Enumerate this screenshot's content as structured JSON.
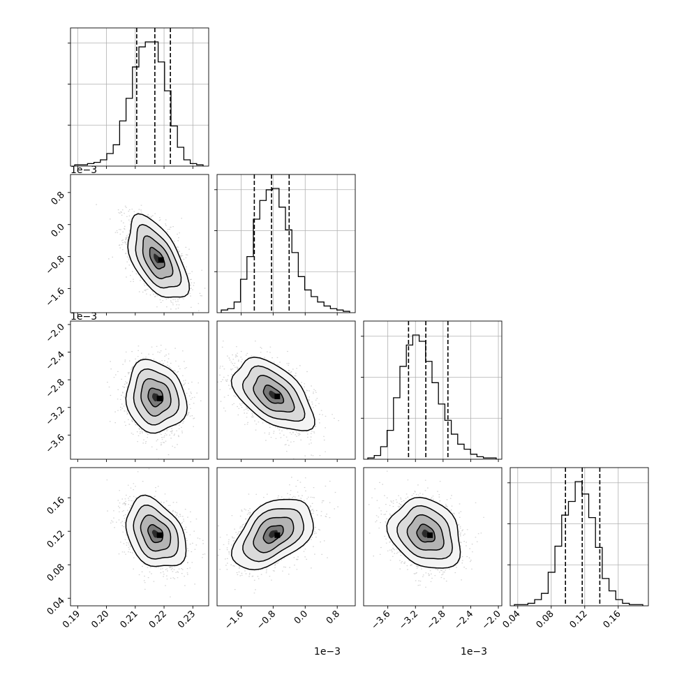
{
  "chart_data": {
    "type": "corner",
    "parameters": [
      {
        "range": [
          0.1875,
          0.2355
        ],
        "ticks": [
          0.19,
          0.2,
          0.21,
          0.22,
          0.23
        ],
        "tick_labels": [
          "0.19",
          "0.20",
          "0.21",
          "0.22",
          "0.23"
        ],
        "offset_label": "",
        "quantiles": [
          0.2105,
          0.2168,
          0.2222
        ],
        "hist_counts": [
          1,
          1,
          2,
          3,
          5,
          10,
          17,
          36,
          54,
          79,
          95,
          99,
          99,
          83,
          60,
          32,
          15,
          5,
          2,
          1
        ]
      },
      {
        "range": [
          -2.2,
          1.25
        ],
        "ticks": [
          -1.6,
          -0.8,
          0.0,
          0.8
        ],
        "tick_labels": [
          "−1.6",
          "−0.8",
          "0.0",
          "0.8"
        ],
        "offset_label": "1e−3",
        "quantiles": [
          -1.27,
          -0.84,
          -0.4
        ],
        "hist_counts": [
          2,
          3,
          8,
          25,
          42,
          70,
          84,
          92,
          93,
          79,
          62,
          45,
          27,
          17,
          12,
          8,
          5,
          3,
          2,
          1
        ]
      },
      {
        "range": [
          -3.95,
          -1.95
        ],
        "ticks": [
          -3.6,
          -3.2,
          -2.8,
          -2.4,
          -2.0
        ],
        "tick_labels": [
          "−3.6",
          "−3.2",
          "−2.8",
          "−2.4",
          "−2.0"
        ],
        "offset_label": "1e−3",
        "quantiles": [
          -3.3,
          -3.05,
          -2.73
        ],
        "hist_counts": [
          1,
          3,
          10,
          23,
          49,
          74,
          91,
          99,
          94,
          78,
          61,
          44,
          31,
          20,
          12,
          8,
          4,
          2,
          1,
          1
        ]
      },
      {
        "range": [
          0.031,
          0.196
        ],
        "ticks": [
          0.04,
          0.08,
          0.12,
          0.16
        ],
        "tick_labels": [
          "0.04",
          "0.08",
          "0.12",
          "0.16"
        ],
        "offset_label": "",
        "quantiles": [
          0.097,
          0.117,
          0.138
        ],
        "hist_counts": [
          1,
          1,
          2,
          5,
          10,
          27,
          48,
          73,
          84,
          100,
          90,
          71,
          47,
          22,
          12,
          5,
          2,
          1,
          1
        ]
      }
    ],
    "pair_stats": [
      {
        "row": 1,
        "col": 0,
        "mean": [
          0.2175,
          -0.85
        ],
        "sd": [
          0.0052,
          0.52
        ],
        "corr": -0.55
      },
      {
        "row": 2,
        "col": 0,
        "mean": [
          0.217,
          -3.05
        ],
        "sd": [
          0.0052,
          0.26
        ],
        "corr": -0.12
      },
      {
        "row": 2,
        "col": 1,
        "mean": [
          -0.8,
          -3.02
        ],
        "sd": [
          0.5,
          0.26
        ],
        "corr": -0.52
      },
      {
        "row": 3,
        "col": 0,
        "mean": [
          0.217,
          0.117
        ],
        "sd": [
          0.0052,
          0.021
        ],
        "corr": -0.32
      },
      {
        "row": 3,
        "col": 1,
        "mean": [
          -0.8,
          0.117
        ],
        "sd": [
          0.5,
          0.021
        ],
        "corr": 0.45
      },
      {
        "row": 3,
        "col": 2,
        "mean": [
          -3.05,
          0.117
        ],
        "sd": [
          0.26,
          0.021
        ],
        "corr": -0.22
      }
    ],
    "grid": true,
    "contour_levels_sigma": [
      0.5,
      1.0,
      1.5,
      2.0
    ]
  }
}
